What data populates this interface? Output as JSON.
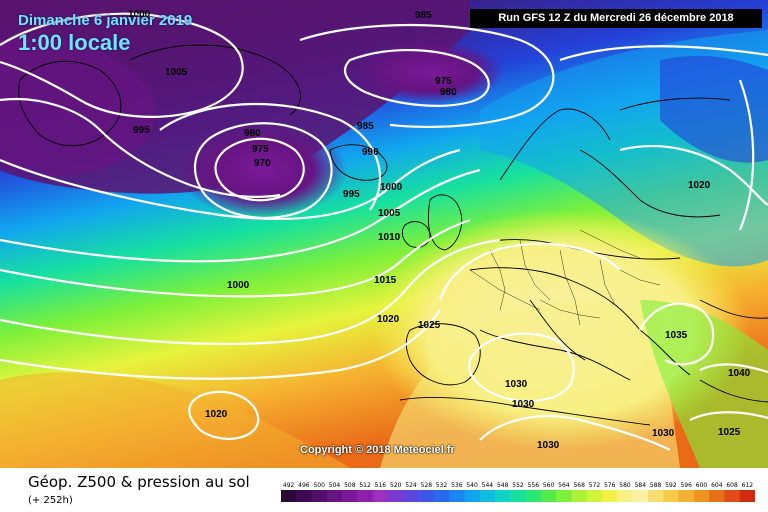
{
  "header": {
    "date": "Dimanche 6 janvier 2019",
    "time": "1:00 locale",
    "run": "Run GFS 12 Z du Mercredi 26 décembre 2018"
  },
  "copyright": "Copyright © 2018 Meteociel.fr",
  "footer": {
    "title": "Géop. Z500 & pression au sol",
    "subtitle": "(+ 252h)"
  },
  "isobar_labels": [
    "985",
    "1000",
    "1005",
    "975",
    "980",
    "995",
    "980",
    "975",
    "970",
    "985",
    "990",
    "995",
    "1000",
    "1005",
    "1010",
    "1015",
    "1020",
    "1025",
    "1000",
    "1020",
    "1020",
    "1035",
    "1040",
    "1030",
    "1030",
    "1030",
    "1030",
    "1025"
  ],
  "scale": {
    "values": [
      "492",
      "496",
      "500",
      "504",
      "508",
      "512",
      "516",
      "520",
      "524",
      "528",
      "532",
      "536",
      "540",
      "544",
      "548",
      "552",
      "556",
      "560",
      "564",
      "568",
      "572",
      "576",
      "580",
      "584",
      "588",
      "592",
      "596",
      "600",
      "604",
      "608",
      "612"
    ],
    "colors": [
      "#2a0a3a",
      "#3e0a52",
      "#52106a",
      "#661482",
      "#7a1a98",
      "#8e20ac",
      "#9c30be",
      "#7a3ad0",
      "#5a46dc",
      "#3c56e8",
      "#2a6af0",
      "#1a86f2",
      "#12a2f0",
      "#10bce0",
      "#12d2c4",
      "#16e09e",
      "#2ae674",
      "#52ea4a",
      "#7ef03a",
      "#aaf238",
      "#d2f43a",
      "#f2f248",
      "#f8f084",
      "#faf0a8",
      "#f8e070",
      "#f6cc48",
      "#f2b030",
      "#ee9222",
      "#ea7018",
      "#e04c14",
      "#d02a10"
    ]
  }
}
